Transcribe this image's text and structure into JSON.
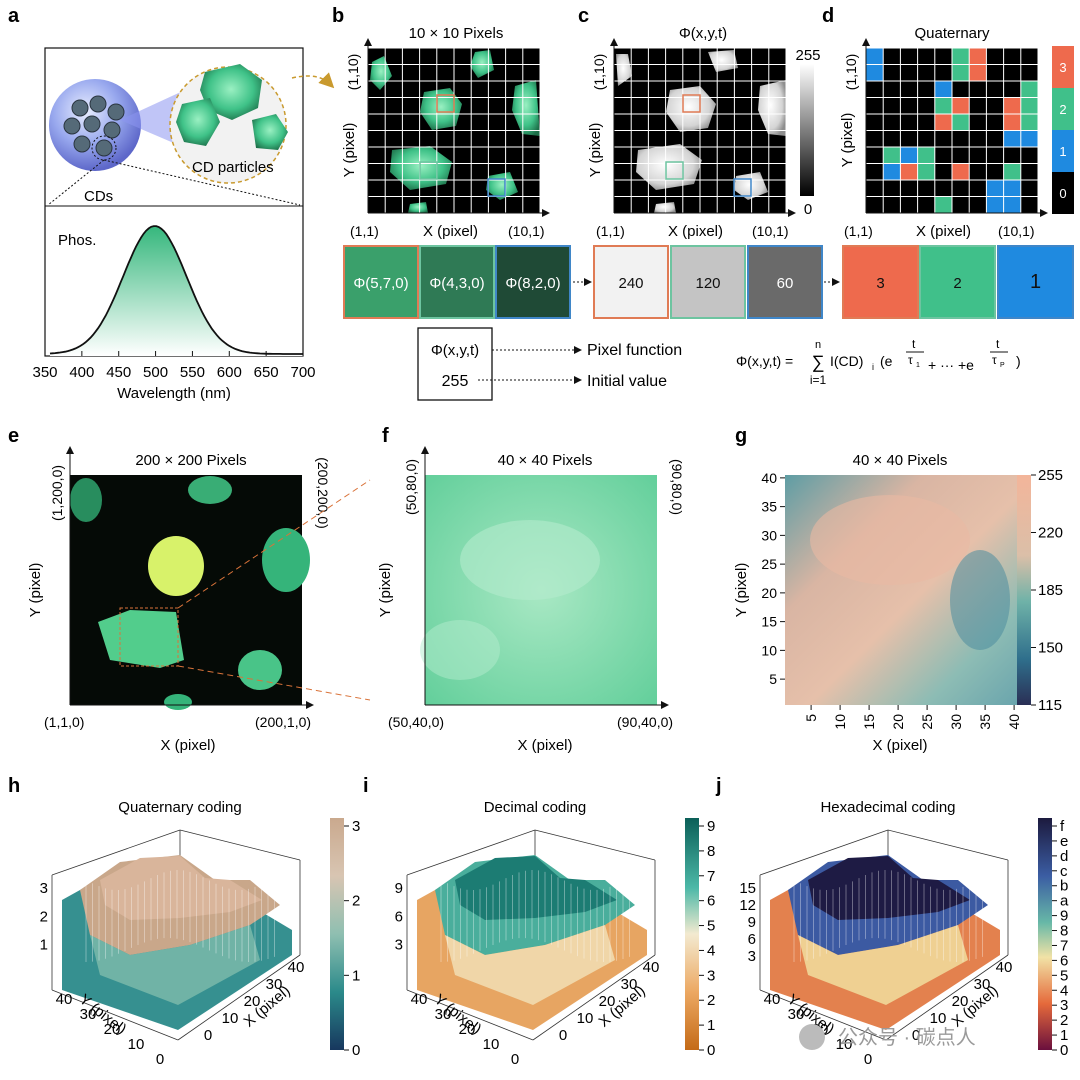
{
  "panels": {
    "a": {
      "letter": "a",
      "cd_particles": "CD particles",
      "cds": "CDs",
      "phos": "Phos.",
      "xlabel": "Wavelength (nm)",
      "xticks": [
        "350",
        "400",
        "450",
        "500",
        "550",
        "600",
        "650",
        "700"
      ]
    },
    "b": {
      "letter": "b",
      "title": "10 × 10 Pixels",
      "ylabel": "Y (pixel)",
      "xlabel": "X (pixel)",
      "origin": "(1,1)",
      "top_left": "(1,10)",
      "bottom_right": "(10,1)"
    },
    "c": {
      "letter": "c",
      "title": "Φ(x,y,t)",
      "ylabel": "Y (pixel)",
      "xlabel": "X (pixel)",
      "origin": "(1,1)",
      "top_left": "(1,10)",
      "bottom_right": "(10,1)",
      "scale_max": "255",
      "scale_min": "0"
    },
    "d": {
      "letter": "d",
      "title": "Quaternary",
      "ylabel": "Y (pixel)",
      "xlabel": "X (pixel)",
      "origin": "(1,1)",
      "top_left": "(1,10)",
      "bottom_right": "(10,1)",
      "scale": [
        "3",
        "2",
        "1",
        "0"
      ]
    },
    "e": {
      "letter": "e",
      "title": "200 × 200 Pixels",
      "ylabel": "Y (pixel)",
      "xlabel": "X (pixel)",
      "top_left": "(1,200,0)",
      "top_right": "(200,200,0)",
      "bottom_left": "(1,1,0)",
      "bottom_right": "(200,1,0)"
    },
    "f": {
      "letter": "f",
      "title": "40 × 40 Pixels",
      "ylabel": "Y (pixel)",
      "xlabel": "X (pixel)",
      "top_left": "(50,80,0)",
      "top_right": "(90,80,0)",
      "bottom_left": "(50,40,0)",
      "bottom_right": "(90,40,0)"
    },
    "g": {
      "letter": "g",
      "title": "40 × 40 Pixels",
      "ylabel": "Y (pixel)",
      "xlabel": "X (pixel)",
      "ticks": [
        "5",
        "10",
        "15",
        "20",
        "25",
        "30",
        "35",
        "40"
      ],
      "colorbar": [
        "255",
        "220",
        "185",
        "150",
        "115"
      ]
    },
    "h": {
      "letter": "h",
      "title": "Quaternary coding",
      "zticks": [
        "3",
        "2",
        "1"
      ],
      "cbar": [
        "3",
        "2",
        "1",
        "0"
      ]
    },
    "i": {
      "letter": "i",
      "title": "Decimal coding",
      "zticks": [
        "9",
        "6",
        "3"
      ],
      "cbar": [
        "9",
        "8",
        "7",
        "6",
        "5",
        "4",
        "3",
        "2",
        "1",
        "0"
      ]
    },
    "j": {
      "letter": "j",
      "title": "Hexadecimal coding",
      "zticks": [
        "15",
        "12",
        "9",
        "6",
        "3"
      ],
      "cbar": [
        "f",
        "e",
        "d",
        "c",
        "b",
        "a",
        "9",
        "8",
        "7",
        "6",
        "5",
        "4",
        "3",
        "2",
        "1",
        "0"
      ]
    }
  },
  "axis3d": {
    "y": "Y (pixel)",
    "x": "X (pixel)",
    "ticks": [
      "40",
      "30",
      "20",
      "10",
      "0"
    ]
  },
  "pixel_row": {
    "functions": [
      "Φ(5,7,0)",
      "Φ(4,3,0)",
      "Φ(8,2,0)"
    ],
    "values": [
      "240",
      "120",
      "60"
    ],
    "codes": [
      "3",
      "2",
      "1"
    ],
    "fn_colors": [
      "#3aa06b",
      "#2f7a55",
      "#1f4a36"
    ],
    "value_colors": [
      "#f2f2f2",
      "#c4c4c4",
      "#6a6a6a"
    ],
    "code_colors": [
      "#ee6a4d",
      "#40c08a",
      "#1f8ae0"
    ],
    "border_colors": [
      "#e07b55",
      "#6dc4a0",
      "#3f86c8"
    ]
  },
  "legend_box": {
    "fn": "Φ(x,y,t)",
    "value": "255",
    "fn_label": "Pixel function",
    "value_label": "Initial value"
  },
  "equation": {
    "lhs": "Φ(x,y,t) = ",
    "sum_top": "n",
    "sum_bottom": "i=1",
    "sigma": "∑",
    "body": "I(CD)",
    "sub": "i",
    "paren": "(e",
    "t": "t",
    "tau1": "τ",
    "tau1_sub": "1",
    "mid": "+ ··· +e",
    "tauP": "τ",
    "tauP_sub": "P",
    "close": ")"
  },
  "watermark": "公众号 · 碳点人",
  "colors": {
    "green": "#2fb57a",
    "orange": "#d9733a",
    "blue": "#2d6fd8"
  }
}
